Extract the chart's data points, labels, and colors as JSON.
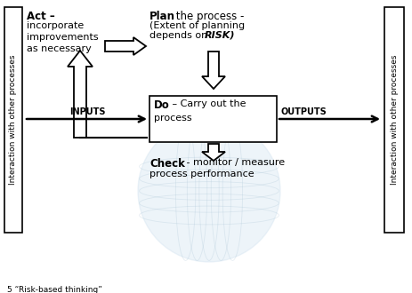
{
  "bg_color": "#ffffff",
  "left_label": "Interaction with other processes",
  "right_label": "Interaction with other processes",
  "bottom_note": "5 “Risk-based thinking”",
  "act_bold": "Act –",
  "act_normal": "incorporate\nimprovements\nas necessary",
  "plan_bold": "Plan",
  "plan_normal": " the process -\n(Extent of planning\ndepends on ",
  "plan_risk": "RISK)",
  "do_bold": "Do",
  "do_normal": " – Carry out the\nprocess",
  "check_bold": "Check",
  "check_normal": " - monitor / measure\nprocess performance",
  "inputs_label": "INPUTS",
  "outputs_label": "OUTPUTS"
}
